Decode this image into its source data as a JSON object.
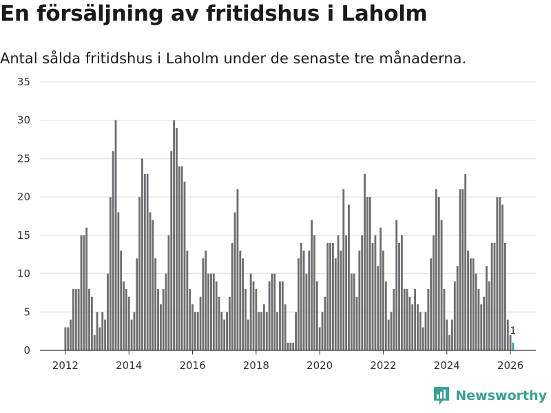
{
  "title": "En försäljning av fritidshus i Laholm",
  "subtitle": "Antal sålda fritidshus i Laholm under de senaste tre månaderna.",
  "brand": {
    "name": "Newsworthy",
    "icon": "newsworthy-logo-icon"
  },
  "colors": {
    "bar": "#6e6e73",
    "highlight": "#3aa095",
    "grid": "#dcdcdc",
    "axis": "#333333"
  },
  "chart_data": {
    "type": "bar",
    "title": "En försäljning av fritidshus i Laholm",
    "xlabel": "",
    "ylabel": "",
    "ylim": [
      0,
      35
    ],
    "yticks": [
      0,
      5,
      10,
      15,
      20,
      25,
      30,
      35
    ],
    "xlim": [
      2011.2,
      2026.8
    ],
    "xticks": [
      2012,
      2014,
      2016,
      2018,
      2020,
      2022,
      2024,
      2026
    ],
    "x_start": 2012.0,
    "step_months": 1,
    "values": [
      3,
      3,
      4,
      8,
      8,
      8,
      15,
      15,
      16,
      8,
      7,
      2,
      5,
      3,
      5,
      4,
      10,
      20,
      26,
      30,
      18,
      13,
      9,
      8,
      7,
      4,
      5,
      12,
      20,
      25,
      23,
      23,
      18,
      17,
      12,
      8,
      6,
      8,
      10,
      15,
      26,
      30,
      29,
      24,
      24,
      22,
      13,
      8,
      6,
      5,
      5,
      7,
      12,
      13,
      10,
      10,
      10,
      9,
      7,
      5,
      4,
      5,
      7,
      14,
      18,
      21,
      13,
      12,
      8,
      4,
      10,
      9,
      8,
      5,
      5,
      6,
      5,
      9,
      10,
      10,
      5,
      9,
      9,
      6,
      1,
      1,
      1,
      5,
      12,
      14,
      13,
      10,
      13,
      17,
      15,
      9,
      3,
      5,
      7,
      14,
      14,
      14,
      12,
      15,
      13,
      21,
      15,
      19,
      10,
      10,
      7,
      13,
      15,
      23,
      20,
      20,
      14,
      15,
      11,
      16,
      13,
      9,
      4,
      5,
      8,
      17,
      14,
      15,
      8,
      8,
      7,
      6,
      8,
      6,
      5,
      3,
      5,
      8,
      12,
      15,
      21,
      20,
      17,
      8,
      4,
      2,
      4,
      9,
      11,
      21,
      21,
      23,
      13,
      12,
      12,
      10,
      8,
      6,
      7,
      11,
      9,
      14,
      14,
      20,
      20,
      19,
      14,
      4,
      2,
      1
    ],
    "highlight_last": true,
    "annotations": [
      {
        "index": 169,
        "text": "1"
      }
    ]
  }
}
